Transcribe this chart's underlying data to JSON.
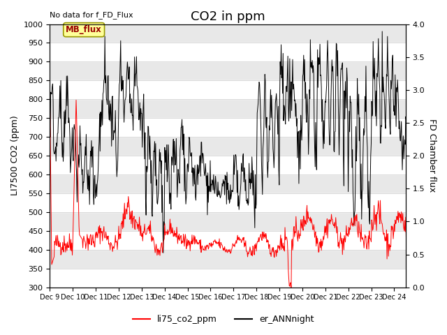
{
  "title": "CO2 in ppm",
  "top_left_note": "No data for f_FD_Flux",
  "ylabel_left": "LI7500 CO2 (ppm)",
  "ylabel_right": "FD Chamber flux",
  "ylim_left": [
    300,
    1000
  ],
  "ylim_right": [
    0.0,
    4.0
  ],
  "yticks_left": [
    300,
    350,
    400,
    450,
    500,
    550,
    600,
    650,
    700,
    750,
    800,
    850,
    900,
    950,
    1000
  ],
  "yticks_right": [
    0.0,
    0.5,
    1.0,
    1.5,
    2.0,
    2.5,
    3.0,
    3.5,
    4.0
  ],
  "xtick_positions": [
    0,
    1,
    2,
    3,
    4,
    5,
    6,
    7,
    8,
    9,
    10,
    11,
    12,
    13,
    14,
    15
  ],
  "xtick_labels": [
    "Dec 9",
    "Dec 10",
    "Dec 11",
    "Dec 12",
    "Dec 13",
    "Dec 14",
    "Dec 15",
    "Dec 16",
    "Dec 17",
    "Dec 18",
    "Dec 19",
    "Dec 20",
    "Dec 21",
    "Dec 22",
    "Dec 23",
    "Dec 24"
  ],
  "xlim": [
    0,
    15.5
  ],
  "legend_entries": [
    "li75_co2_ppm",
    "er_ANNnight"
  ],
  "legend_colors": [
    "red",
    "black"
  ],
  "mb_flux_label": "MB_flux",
  "mb_flux_box_color": "#ffff99",
  "mb_flux_border_color": "#999900",
  "mb_flux_text_color": "#990000",
  "grid_color": "#cccccc",
  "bg_gray": "#e8e8e8",
  "title_fontsize": 13,
  "label_fontsize": 9,
  "tick_fontsize": 8
}
